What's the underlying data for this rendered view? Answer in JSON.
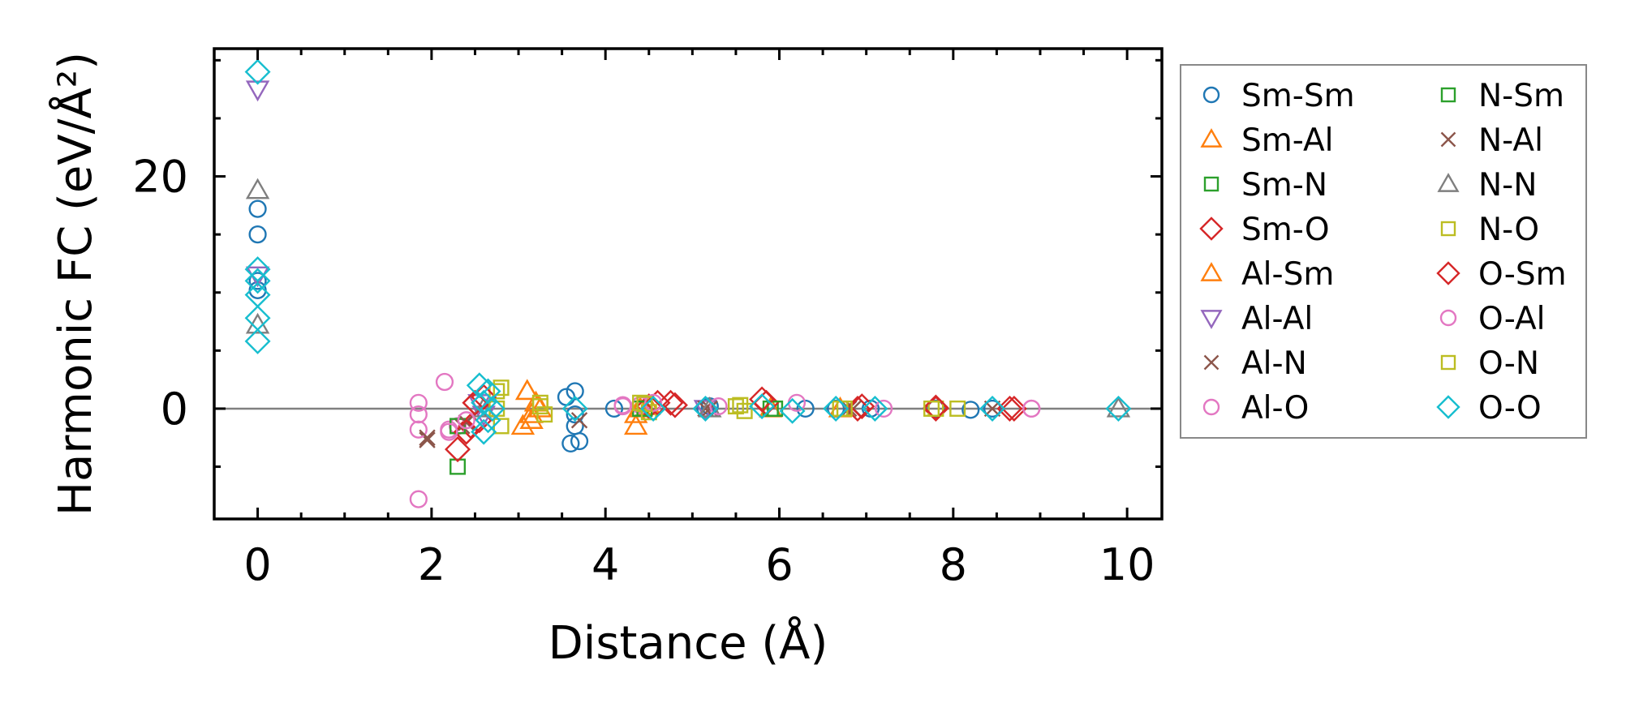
{
  "chart_data": {
    "type": "scatter",
    "xlabel": "Distance (Å)",
    "ylabel": "Harmonic FC (eV/Å²)",
    "xlim": [
      -0.5,
      10.4
    ],
    "ylim": [
      -9.5,
      31
    ],
    "xticks": [
      0,
      2,
      4,
      6,
      8,
      10
    ],
    "xtick_labels": [
      "0",
      "2",
      "4",
      "6",
      "8",
      "10"
    ],
    "yticks": [
      0,
      20
    ],
    "ytick_labels": [
      "0",
      "20"
    ],
    "reference_line_y": 0,
    "legend_position": "outside right",
    "series": [
      {
        "name": "Sm-Sm",
        "marker": "circle",
        "color": "#1f77b4",
        "x": [
          0,
          0,
          0,
          0,
          3.55,
          3.6,
          3.65,
          3.65,
          3.65,
          3.7,
          4.1,
          5.15,
          5.2,
          6.3,
          6.65,
          7.05,
          7.8,
          8.2,
          8.45
        ],
        "y": [
          17.2,
          15,
          11,
          10.2,
          1,
          -3,
          1.5,
          -0.5,
          -1.5,
          -2.8,
          0,
          0,
          0.2,
          0,
          0,
          0,
          0,
          -0.1,
          0
        ]
      },
      {
        "name": "Sm-Al",
        "marker": "triangle-up",
        "color": "#ff7f0e",
        "x": [
          3.1,
          3.15,
          3.2,
          4.35,
          4.4,
          4.5,
          5.9,
          6.7
        ],
        "y": [
          1.5,
          -1,
          0.5,
          -1.5,
          0,
          0.2,
          0,
          0
        ]
      },
      {
        "name": "Sm-N",
        "marker": "square",
        "color": "#2ca02c",
        "x": [
          2.3,
          4.4,
          5.9
        ],
        "y": [
          -5,
          0,
          0
        ]
      },
      {
        "name": "Sm-O",
        "marker": "diamond",
        "color": "#d62728",
        "x": [
          2.3,
          2.45,
          2.5,
          2.55,
          4.5,
          4.8,
          5.85,
          6.9,
          7.8,
          8.7
        ],
        "y": [
          -3.5,
          -1.5,
          0.5,
          -1,
          0.2,
          0.3,
          0.5,
          0,
          0,
          0
        ]
      },
      {
        "name": "Al-Sm",
        "marker": "triangle-up",
        "color": "#ff7f0e",
        "x": [
          3.05,
          3.1,
          3.15,
          3.25,
          4.35
        ],
        "y": [
          -1.5,
          1.5,
          -0.5,
          0,
          -0.5
        ]
      },
      {
        "name": "Al-Al",
        "marker": "triangle-down",
        "color": "#9467bd",
        "x": [
          0,
          0,
          2.55,
          2.6,
          5.15
        ],
        "y": [
          27.5,
          11.5,
          0.5,
          -0.5,
          0
        ]
      },
      {
        "name": "Al-N",
        "marker": "x",
        "color": "#8c564b",
        "x": [
          1.95,
          2.35,
          5.15,
          6.85,
          8.45
        ],
        "y": [
          -2.7,
          -1.5,
          0,
          0,
          0
        ]
      },
      {
        "name": "Al-O",
        "marker": "circle",
        "color": "#e377c2",
        "x": [
          1.85,
          1.85,
          1.85,
          1.85,
          2.15,
          2.2,
          2.3,
          4.2,
          4.4,
          8.9
        ],
        "y": [
          0.5,
          -0.5,
          -1.8,
          -7.8,
          2.3,
          -1.8,
          -1.5,
          0.2,
          0.3,
          0
        ]
      },
      {
        "name": "N-Sm",
        "marker": "square",
        "color": "#2ca02c",
        "x": [
          2.3,
          4.45,
          5.95
        ],
        "y": [
          -1.5,
          0,
          0
        ]
      },
      {
        "name": "N-Al",
        "marker": "x",
        "color": "#8c564b",
        "x": [
          1.95,
          2.4,
          3.7,
          5.2,
          6.8
        ],
        "y": [
          -2.5,
          -1.2,
          -1,
          0,
          0
        ]
      },
      {
        "name": "N-N",
        "marker": "triangle-up",
        "color": "#7f7f7f",
        "x": [
          0,
          0,
          2.6,
          5.2,
          9.9
        ],
        "y": [
          18.8,
          7.2,
          0,
          0,
          0
        ]
      },
      {
        "name": "N-O",
        "marker": "square",
        "color": "#bcbd22",
        "x": [
          2.75,
          2.8,
          3.25,
          3.3,
          4.4,
          4.5,
          5.5,
          5.6,
          6.7,
          7.8
        ],
        "y": [
          1.5,
          -1.5,
          0.5,
          -0.5,
          0.5,
          -0.3,
          0.2,
          -0.2,
          0,
          0
        ]
      },
      {
        "name": "O-Sm",
        "marker": "diamond",
        "color": "#d62728",
        "x": [
          2.4,
          2.5,
          2.6,
          4.6,
          4.75,
          5.8,
          6.95,
          7.8,
          8.65
        ],
        "y": [
          -2,
          0.5,
          1,
          0.5,
          0.5,
          0.8,
          0.2,
          0.1,
          0
        ]
      },
      {
        "name": "O-Al",
        "marker": "circle",
        "color": "#e377c2",
        "x": [
          2.2,
          2.4,
          4.2,
          4.55,
          5.3,
          6.2,
          7.2,
          8.9
        ],
        "y": [
          -2,
          -1,
          0.3,
          0.5,
          0.2,
          0.5,
          0,
          0
        ]
      },
      {
        "name": "O-N",
        "marker": "square",
        "color": "#bcbd22",
        "x": [
          2.75,
          2.8,
          3.25,
          4.45,
          5.55,
          6.75,
          7.75,
          8.05
        ],
        "y": [
          0,
          1.8,
          0.2,
          0.4,
          0.3,
          0,
          0,
          0
        ]
      },
      {
        "name": "O-O",
        "marker": "diamond",
        "color": "#17becf",
        "x": [
          0,
          0,
          0,
          0,
          0,
          0,
          2.55,
          2.6,
          2.6,
          2.65,
          2.65,
          2.7,
          3.65,
          4.55,
          5.15,
          5.8,
          6.15,
          6.65,
          7.1,
          8.45,
          9.9
        ],
        "y": [
          29,
          12,
          9.8,
          7.8,
          5.8,
          11,
          2,
          -2,
          0.5,
          1.5,
          -1,
          0,
          0,
          0,
          0,
          0.2,
          -0.2,
          0,
          0,
          0,
          0
        ]
      }
    ]
  }
}
